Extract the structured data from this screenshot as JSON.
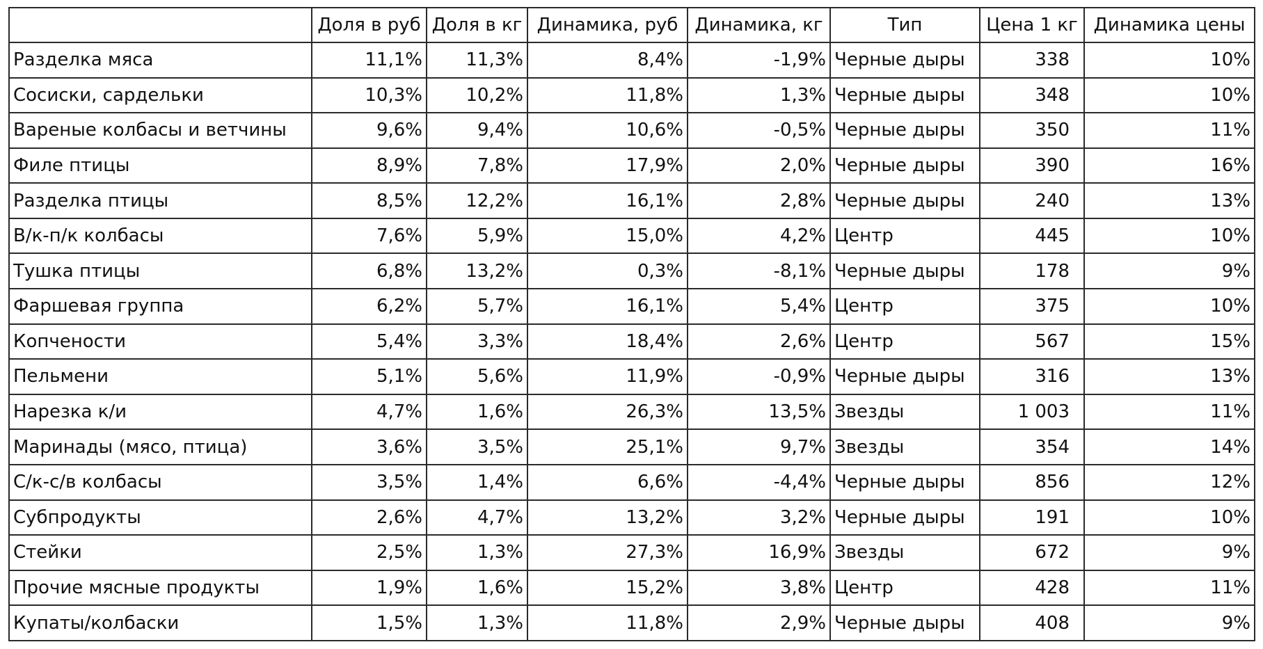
{
  "table": {
    "headers": [
      "",
      "Доля в руб",
      "Доля в кг",
      "Динамика, руб",
      "Динамика, кг",
      "Тип",
      "Цена 1 кг",
      "Динамика цены"
    ],
    "rows": [
      [
        "Разделка мяса",
        "11,1%",
        "11,3%",
        "8,4%",
        "-1,9%",
        "Черные дыры",
        "338",
        "10%"
      ],
      [
        "Сосиски, сардельки",
        "10,3%",
        "10,2%",
        "11,8%",
        "1,3%",
        "Черные дыры",
        "348",
        "10%"
      ],
      [
        "Вареные колбасы и ветчины",
        "9,6%",
        "9,4%",
        "10,6%",
        "-0,5%",
        "Черные дыры",
        "350",
        "11%"
      ],
      [
        "Филе птицы",
        "8,9%",
        "7,8%",
        "17,9%",
        "2,0%",
        "Черные дыры",
        "390",
        "16%"
      ],
      [
        "Разделка птицы",
        "8,5%",
        "12,2%",
        "16,1%",
        "2,8%",
        "Черные дыры",
        "240",
        "13%"
      ],
      [
        "В/к-п/к колбасы",
        "7,6%",
        "5,9%",
        "15,0%",
        "4,2%",
        "Центр",
        "445",
        "10%"
      ],
      [
        "Тушка птицы",
        "6,8%",
        "13,2%",
        "0,3%",
        "-8,1%",
        "Черные дыры",
        "178",
        "9%"
      ],
      [
        "Фаршевая группа",
        "6,2%",
        "5,7%",
        "16,1%",
        "5,4%",
        "Центр",
        "375",
        "10%"
      ],
      [
        "Копчености",
        "5,4%",
        "3,3%",
        "18,4%",
        "2,6%",
        "Центр",
        "567",
        "15%"
      ],
      [
        "Пельмени",
        "5,1%",
        "5,6%",
        "11,9%",
        "-0,9%",
        "Черные дыры",
        "316",
        "13%"
      ],
      [
        "Нарезка к/и",
        "4,7%",
        "1,6%",
        "26,3%",
        "13,5%",
        "Звезды",
        "1 003",
        "11%"
      ],
      [
        "Маринады (мясо, птица)",
        "3,6%",
        "3,5%",
        "25,1%",
        "9,7%",
        "Звезды",
        "354",
        "14%"
      ],
      [
        "С/к-с/в колбасы",
        "3,5%",
        "1,4%",
        "6,6%",
        "-4,4%",
        "Черные дыры",
        "856",
        "12%"
      ],
      [
        "Субпродукты",
        "2,6%",
        "4,7%",
        "13,2%",
        "3,2%",
        "Черные дыры",
        "191",
        "10%"
      ],
      [
        "Стейки",
        "2,5%",
        "1,3%",
        "27,3%",
        "16,9%",
        "Звезды",
        "672",
        "9%"
      ],
      [
        "Прочие мясные продукты",
        "1,9%",
        "1,6%",
        "15,2%",
        "3,8%",
        "Центр",
        "428",
        "11%"
      ],
      [
        "Купаты/колбаски",
        "1,5%",
        "1,3%",
        "11,8%",
        "2,9%",
        "Черные дыры",
        "408",
        "9%"
      ]
    ]
  }
}
